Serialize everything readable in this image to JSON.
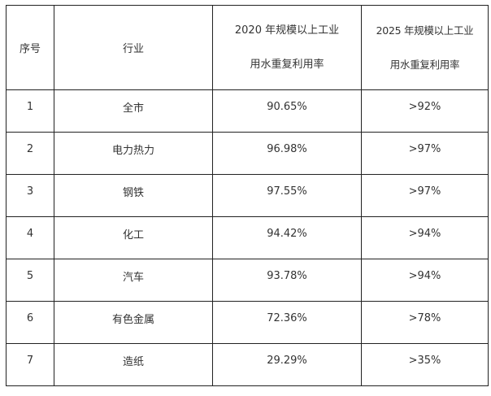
{
  "table": {
    "headers": {
      "index": "序号",
      "industry": "行业",
      "rate_2020": [
        "2020 年规模以上工业",
        "用水重复利用率"
      ],
      "rate_2025": [
        "2025 年规模以上工业",
        "用水重复利用率"
      ]
    },
    "rows": [
      {
        "index": "1",
        "industry": "全市",
        "rate_2020": "90.65%",
        "rate_2025": ">92%"
      },
      {
        "index": "2",
        "industry": "电力热力",
        "rate_2020": "96.98%",
        "rate_2025": ">97%"
      },
      {
        "index": "3",
        "industry": "钢铁",
        "rate_2020": "97.55%",
        "rate_2025": ">97%"
      },
      {
        "index": "4",
        "industry": "化工",
        "rate_2020": "94.42%",
        "rate_2025": ">94%"
      },
      {
        "index": "5",
        "industry": "汽车",
        "rate_2020": "93.78%",
        "rate_2025": ">94%"
      },
      {
        "index": "6",
        "industry": "有色金属",
        "rate_2020": "72.36%",
        "rate_2025": ">78%"
      },
      {
        "index": "7",
        "industry": "造纸",
        "rate_2020": "29.29%",
        "rate_2025": ">35%"
      }
    ]
  }
}
